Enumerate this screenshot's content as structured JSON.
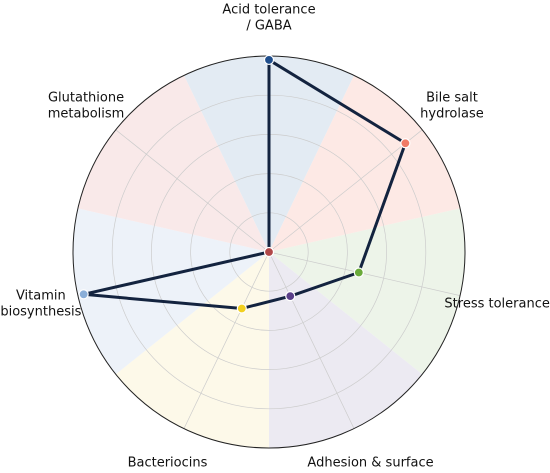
{
  "chart_data": {
    "type": "radar",
    "categories": [
      [
        "Acid tolerance",
        "/ GABA"
      ],
      [
        "Bile salt",
        "hydrolase"
      ],
      [
        "Stress tolerance"
      ],
      [
        "Adhesion & surface"
      ],
      [
        "Bacteriocins"
      ],
      [
        "Vitamin",
        "biosynthesis"
      ],
      [
        "Glutathione",
        "metabolism"
      ]
    ],
    "series": [
      {
        "color": "#13233f",
        "values": [
          0.98,
          0.89,
          0.47,
          0.25,
          0.32,
          0.97,
          0
        ],
        "point_colors": [
          "#1f4e8c",
          "#f07a66",
          "#6aaa3a",
          "#5a3f8a",
          "#f2d020",
          "#8aaed8",
          "#b04848"
        ]
      }
    ],
    "sector_colors": [
      "#dce6f0",
      "#fde3de",
      "#e8f1e3",
      "#e7e5ef",
      "#fdf8e3",
      "#e9eff7",
      "#f8e4e4"
    ],
    "ylim": [
      0,
      1
    ],
    "yticks": [
      0.2,
      0.4,
      0.6,
      0.8
    ],
    "grid": true
  }
}
